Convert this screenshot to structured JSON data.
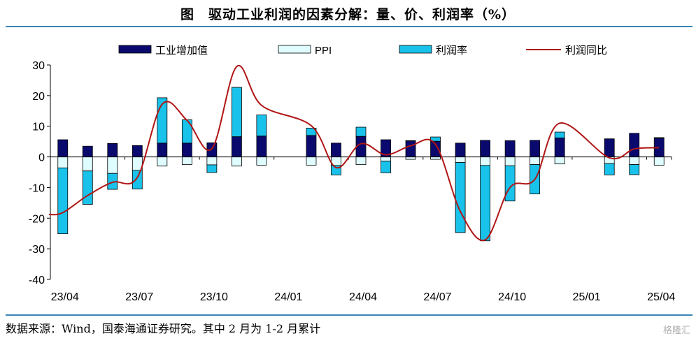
{
  "title": "图　驱动工业利润的因素分解：量、价、利润率（%）",
  "source": "数据来源：Wind，国泰海通证券研究。其中 2 月为 1-2 月累计",
  "watermark": "格隆汇",
  "colors": {
    "industry": "#0a0a6e",
    "ppi": "#dffcff",
    "margin": "#19c2ea",
    "profit_yoy": "#b01515",
    "rule": "#3a86b8"
  },
  "chart_data": {
    "type": "bar",
    "legend_position": "top",
    "ylim": [
      -40,
      30
    ],
    "yticks": [
      -40,
      -30,
      -20,
      -10,
      0,
      10,
      20,
      30
    ],
    "x_tick_labels": [
      "23/04",
      "23/07",
      "23/10",
      "24/01",
      "24/04",
      "24/07",
      "24/10",
      "25/01",
      "25/04"
    ],
    "categories": [
      "23/04",
      "23/05",
      "23/06",
      "23/07",
      "23/08",
      "23/09",
      "23/10",
      "23/11",
      "23/12",
      "24/01",
      "24/02",
      "24/03",
      "24/04",
      "24/05",
      "24/06",
      "24/07",
      "24/08",
      "24/09",
      "24/10",
      "24/11",
      "24/12",
      "25/01",
      "25/02",
      "25/03",
      "25/04"
    ],
    "series": [
      {
        "name": "工业增加值",
        "kind": "stacked_bar",
        "values": [
          5.6,
          3.5,
          4.4,
          3.7,
          4.5,
          4.5,
          4.6,
          6.6,
          6.8,
          null,
          7.0,
          4.5,
          6.7,
          5.6,
          5.3,
          5.1,
          4.5,
          5.4,
          5.3,
          5.4,
          6.2,
          null,
          5.9,
          7.7,
          6.1
        ]
      },
      {
        "name": "PPI",
        "kind": "stacked_bar",
        "values": [
          -3.6,
          -4.6,
          -5.4,
          -4.4,
          -3.0,
          -2.5,
          -2.6,
          -3.0,
          -2.7,
          null,
          -2.7,
          -2.8,
          -2.5,
          -1.4,
          -0.8,
          -0.8,
          -1.8,
          -2.8,
          -2.9,
          -2.5,
          -2.3,
          null,
          -2.2,
          -2.5,
          -2.7
        ]
      },
      {
        "name": "利润率",
        "kind": "stacked_bar",
        "values": [
          -21.5,
          -10.9,
          -5.2,
          -6.1,
          14.8,
          7.6,
          -2.5,
          16.1,
          6.9,
          null,
          2.4,
          -3.1,
          3.0,
          -3.8,
          0.0,
          1.4,
          -22.9,
          -24.6,
          -11.5,
          -9.6,
          1.9,
          null,
          -3.7,
          -3.3,
          0.2
        ]
      },
      {
        "name": "利润同比",
        "kind": "line",
        "values": [
          -18.2,
          -12.6,
          -8.3,
          -6.7,
          17.2,
          11.9,
          2.7,
          29.5,
          16.8,
          null,
          10.2,
          -3.5,
          4.3,
          0.7,
          3.6,
          4.1,
          -17.8,
          -27.1,
          -10.0,
          -7.3,
          11.0,
          null,
          -0.3,
          2.6,
          3.0
        ]
      }
    ]
  }
}
